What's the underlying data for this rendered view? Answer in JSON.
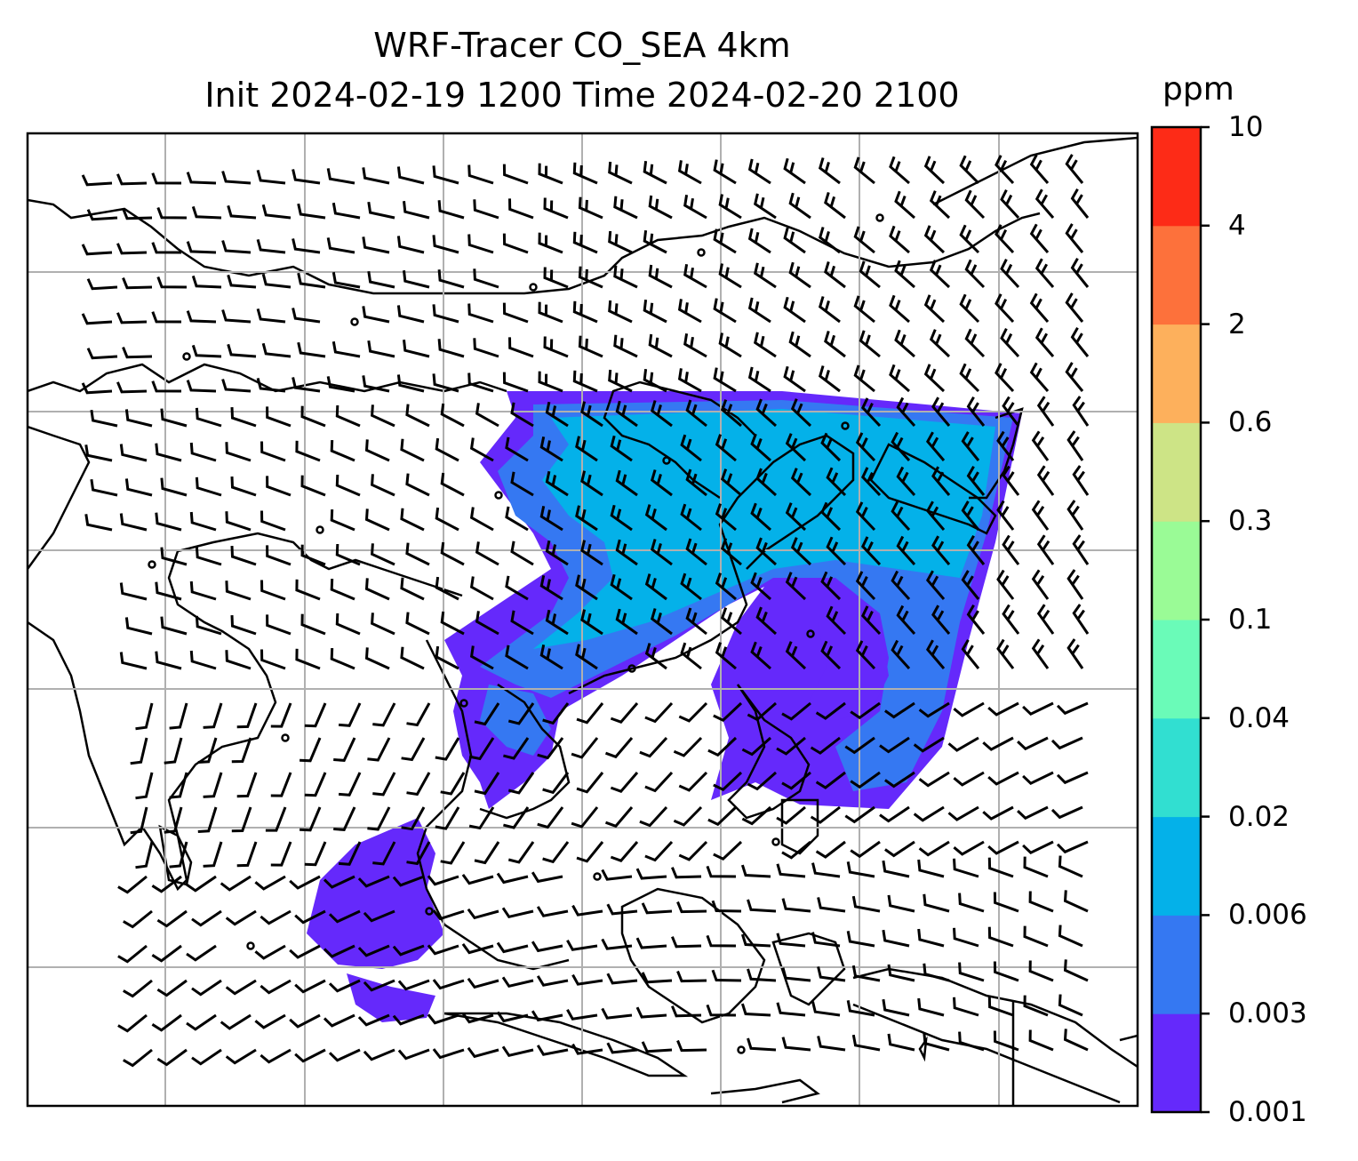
{
  "title": {
    "line1": "WRF-Tracer CO_SEA 4km",
    "line2": "Init 2024-02-19 1200 Time 2024-02-20 2100"
  },
  "colorbar": {
    "unit": "ppm",
    "ticks": [
      "10",
      "4",
      "2",
      "0.6",
      "0.3",
      "0.1",
      "0.04",
      "0.02",
      "0.006",
      "0.003",
      "0.001"
    ],
    "colors_bottom_to_top": [
      "#6529fb",
      "#3578f2",
      "#04b1e9",
      "#31dfd1",
      "#6afbb8",
      "#9afb96",
      "#cde486",
      "#fdb05c",
      "#fd713b",
      "#fd2b17"
    ]
  },
  "map": {
    "grid": true,
    "content": "tracer concentration field with wind barbs over Southeast/East Asia"
  }
}
